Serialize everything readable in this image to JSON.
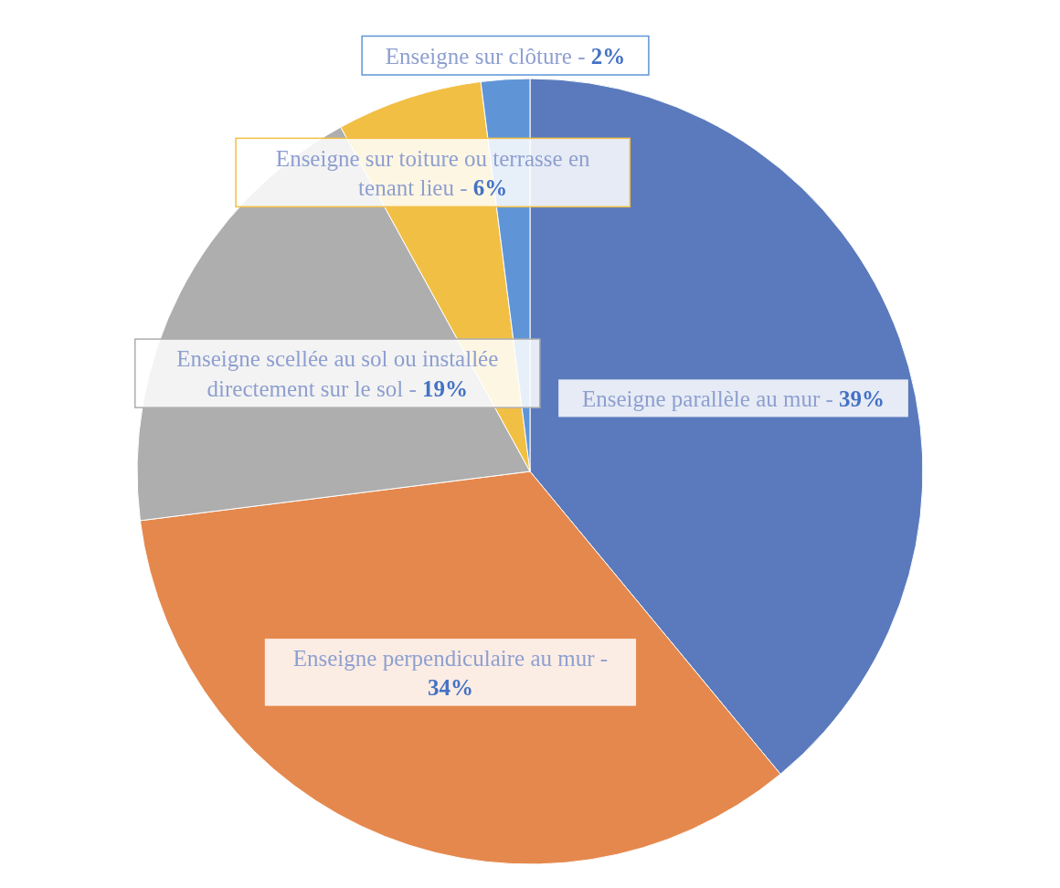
{
  "chart_data": {
    "type": "pie",
    "categories": [
      "Enseigne parallèle au mur -",
      "Enseigne perpendiculaire au mur -",
      "Enseigne scellée au sol ou installée directement sur le sol -",
      "Enseigne sur toiture ou terrasse en tenant lieu -",
      "Enseigne sur clôture -"
    ],
    "values": [
      39,
      34,
      19,
      6,
      2
    ],
    "value_labels": [
      "39%",
      "34%",
      "19%",
      "6%",
      "2%"
    ],
    "colors": [
      "#5a7abd",
      "#e5884d",
      "#aeaeae",
      "#f2bf45",
      "#5f95d7"
    ]
  }
}
